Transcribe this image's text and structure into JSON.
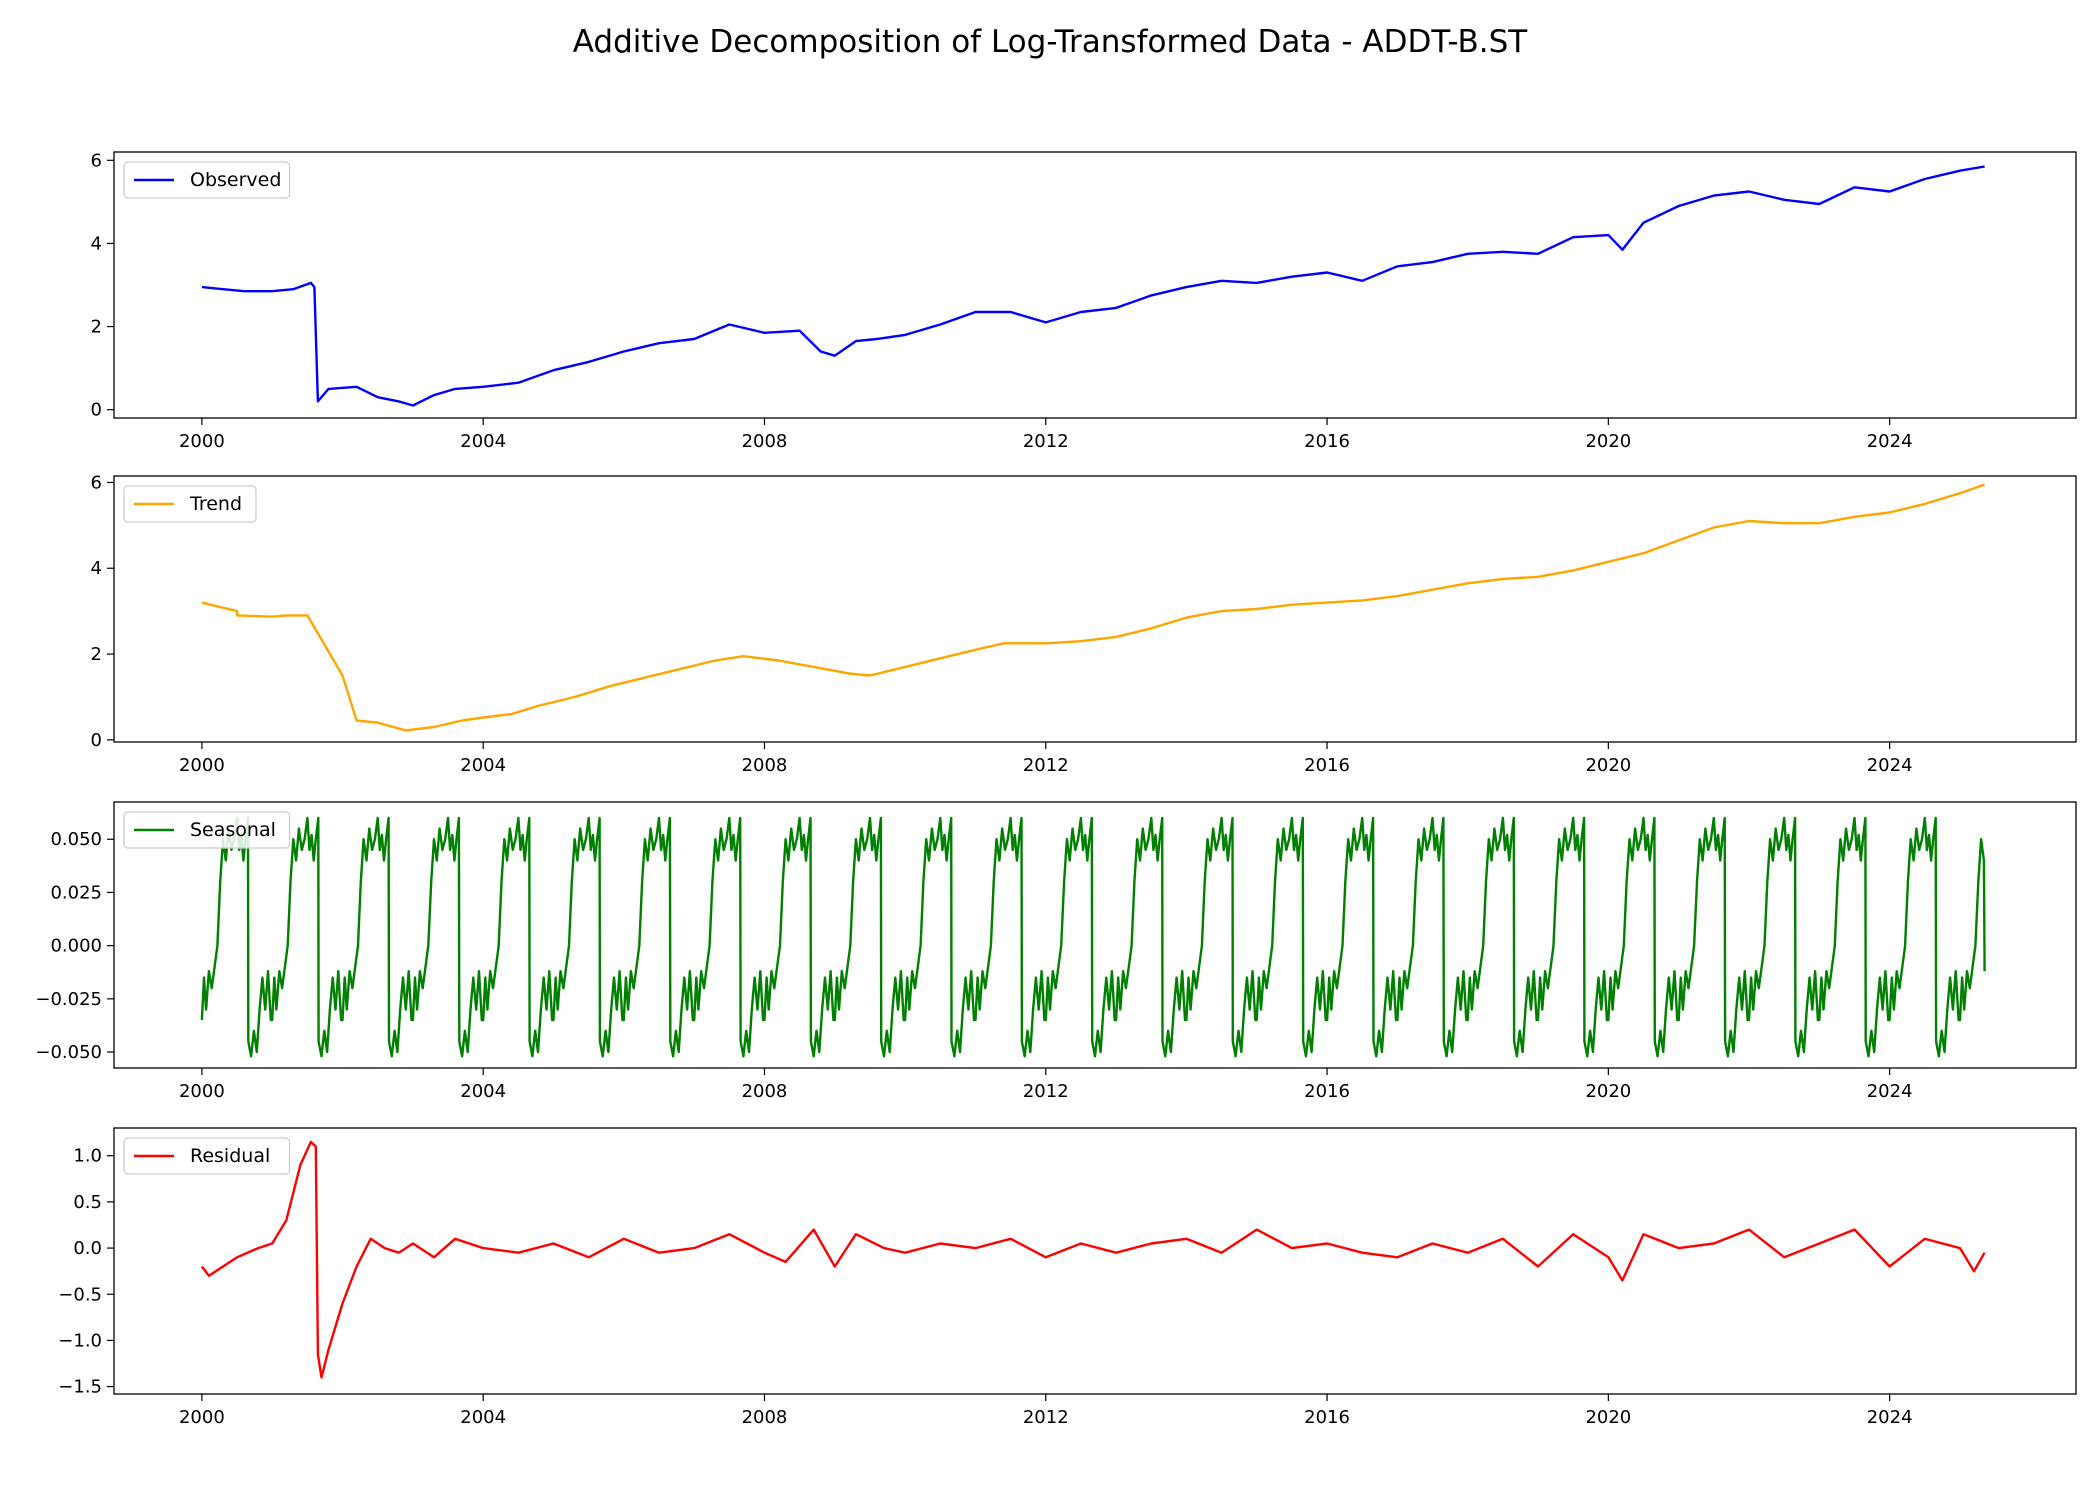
{
  "title": "Additive Decomposition of Log-Transformed Data - ADDT-B.ST",
  "chart_data": [
    {
      "type": "line",
      "legend": "Observed",
      "legend_position": "upper-left",
      "color": "#0000ff",
      "xlim": [
        1998.75,
        2026.65
      ],
      "ylim": [
        -0.2,
        6.2
      ],
      "x_ticks": [
        2000,
        2004,
        2008,
        2012,
        2016,
        2020,
        2024
      ],
      "y_ticks": [
        0,
        2,
        4,
        6
      ],
      "series": [
        {
          "x": [
            2000.0,
            2000.3,
            2000.6,
            2001.0,
            2001.3,
            2001.55,
            2001.6,
            2001.65,
            2001.8,
            2002.2,
            2002.5,
            2002.8,
            2003.0,
            2003.3,
            2003.6,
            2004.0,
            2004.5,
            2005.0,
            2005.5,
            2006.0,
            2006.5,
            2007.0,
            2007.5,
            2008.0,
            2008.5,
            2008.8,
            2009.0,
            2009.3,
            2009.6,
            2010.0,
            2010.5,
            2011.0,
            2011.5,
            2012.0,
            2012.5,
            2013.0,
            2013.5,
            2014.0,
            2014.5,
            2015.0,
            2015.5,
            2016.0,
            2016.5,
            2017.0,
            2017.5,
            2018.0,
            2018.5,
            2019.0,
            2019.5,
            2020.0,
            2020.2,
            2020.5,
            2021.0,
            2021.5,
            2022.0,
            2022.5,
            2023.0,
            2023.5,
            2024.0,
            2024.5,
            2025.0,
            2025.35
          ],
          "y": [
            2.95,
            2.9,
            2.85,
            2.85,
            2.9,
            3.05,
            2.95,
            0.2,
            0.5,
            0.55,
            0.3,
            0.2,
            0.1,
            0.35,
            0.5,
            0.55,
            0.65,
            0.95,
            1.15,
            1.4,
            1.6,
            1.7,
            2.05,
            1.85,
            1.9,
            1.4,
            1.3,
            1.65,
            1.7,
            1.8,
            2.05,
            2.35,
            2.35,
            2.1,
            2.35,
            2.45,
            2.75,
            2.95,
            3.1,
            3.05,
            3.2,
            3.3,
            3.1,
            3.45,
            3.55,
            3.75,
            3.8,
            3.75,
            4.15,
            4.2,
            3.85,
            4.5,
            4.9,
            5.15,
            5.25,
            5.05,
            4.95,
            5.35,
            5.25,
            5.55,
            5.75,
            5.85
          ]
        }
      ]
    },
    {
      "type": "line",
      "legend": "Trend",
      "legend_position": "upper-left",
      "color": "#ffa500",
      "xlim": [
        1998.75,
        2026.65
      ],
      "ylim": [
        -0.05,
        6.15
      ],
      "x_ticks": [
        2000,
        2004,
        2008,
        2012,
        2016,
        2020,
        2024
      ],
      "y_ticks": [
        0,
        2,
        4,
        6
      ],
      "series": [
        {
          "x": [
            2000.0,
            2000.25,
            2000.5,
            2000.5,
            2001.0,
            2001.2,
            2001.5,
            2002.0,
            2002.2,
            2002.5,
            2002.9,
            2003.3,
            2003.7,
            2004.0,
            2004.4,
            2004.8,
            2005.3,
            2005.8,
            2006.3,
            2006.8,
            2007.3,
            2007.7,
            2008.2,
            2008.7,
            2009.2,
            2009.5,
            2010.0,
            2010.5,
            2011.0,
            2011.4,
            2012.0,
            2012.5,
            2013.0,
            2013.5,
            2014.0,
            2014.5,
            2015.0,
            2015.5,
            2016.0,
            2016.5,
            2017.0,
            2017.5,
            2018.0,
            2018.5,
            2019.0,
            2019.5,
            2020.0,
            2020.5,
            2021.0,
            2021.5,
            2022.0,
            2022.5,
            2023.0,
            2023.5,
            2024.0,
            2024.5,
            2025.0,
            2025.35
          ],
          "y": [
            3.2,
            3.1,
            3.0,
            2.9,
            2.87,
            2.9,
            2.9,
            1.5,
            0.45,
            0.4,
            0.22,
            0.3,
            0.45,
            0.52,
            0.6,
            0.8,
            1.0,
            1.25,
            1.45,
            1.65,
            1.85,
            1.95,
            1.85,
            1.7,
            1.55,
            1.5,
            1.7,
            1.9,
            2.1,
            2.25,
            2.25,
            2.3,
            2.4,
            2.6,
            2.85,
            3.0,
            3.05,
            3.15,
            3.2,
            3.25,
            3.35,
            3.5,
            3.65,
            3.75,
            3.8,
            3.95,
            4.15,
            4.35,
            4.65,
            4.95,
            5.1,
            5.05,
            5.05,
            5.2,
            5.3,
            5.5,
            5.75,
            5.95
          ]
        }
      ]
    },
    {
      "type": "line",
      "legend": "Seasonal",
      "legend_position": "upper-left",
      "color": "#008000",
      "xlim": [
        1998.75,
        2026.65
      ],
      "ylim": [
        -0.0575,
        0.0675
      ],
      "x_ticks": [
        2000,
        2004,
        2008,
        2012,
        2016,
        2020,
        2024
      ],
      "y_ticks": [
        -0.05,
        -0.025,
        0.0,
        0.025,
        0.05
      ],
      "period_years": 1,
      "one_period": {
        "phase": [
          0.0,
          0.03,
          0.06,
          0.1,
          0.14,
          0.18,
          0.22,
          0.26,
          0.3,
          0.34,
          0.38,
          0.42,
          0.46,
          0.5,
          0.53,
          0.56,
          0.59,
          0.62,
          0.655,
          0.66,
          0.7,
          0.74,
          0.78,
          0.82,
          0.86,
          0.9,
          0.94,
          0.98
        ],
        "y": [
          -0.035,
          -0.015,
          -0.03,
          -0.012,
          -0.02,
          -0.01,
          0.0,
          0.03,
          0.05,
          0.04,
          0.055,
          0.045,
          0.05,
          0.06,
          0.045,
          0.052,
          0.04,
          0.05,
          0.06,
          -0.045,
          -0.052,
          -0.04,
          -0.05,
          -0.03,
          -0.015,
          -0.03,
          -0.012,
          -0.035
        ]
      },
      "series_end_x": 2025.35,
      "series_end_y": -0.012
    },
    {
      "type": "line",
      "legend": "Residual",
      "legend_position": "upper-left",
      "color": "#ff0000",
      "xlim": [
        1998.75,
        2026.65
      ],
      "ylim": [
        -1.58,
        1.3
      ],
      "x_ticks": [
        2000,
        2004,
        2008,
        2012,
        2016,
        2020,
        2024
      ],
      "y_ticks": [
        -1.5,
        -1.0,
        -0.5,
        0.0,
        0.5,
        1.0
      ],
      "series": [
        {
          "x": [
            2000.0,
            2000.1,
            2000.3,
            2000.5,
            2000.8,
            2001.0,
            2001.2,
            2001.4,
            2001.55,
            2001.62,
            2001.65,
            2001.7,
            2001.8,
            2002.0,
            2002.2,
            2002.4,
            2002.6,
            2002.8,
            2003.0,
            2003.3,
            2003.6,
            2004.0,
            2004.5,
            2005.0,
            2005.5,
            2006.0,
            2006.5,
            2007.0,
            2007.5,
            2008.0,
            2008.3,
            2008.7,
            2009.0,
            2009.3,
            2009.7,
            2010.0,
            2010.5,
            2011.0,
            2011.5,
            2012.0,
            2012.5,
            2013.0,
            2013.5,
            2014.0,
            2014.5,
            2015.0,
            2015.5,
            2016.0,
            2016.5,
            2017.0,
            2017.5,
            2018.0,
            2018.5,
            2019.0,
            2019.5,
            2020.0,
            2020.2,
            2020.5,
            2021.0,
            2021.5,
            2022.0,
            2022.5,
            2023.0,
            2023.5,
            2024.0,
            2024.5,
            2025.0,
            2025.2,
            2025.35
          ],
          "y": [
            -0.2,
            -0.3,
            -0.2,
            -0.1,
            0.0,
            0.05,
            0.3,
            0.9,
            1.15,
            1.1,
            -1.15,
            -1.4,
            -1.1,
            -0.6,
            -0.2,
            0.1,
            0.0,
            -0.05,
            0.05,
            -0.1,
            0.1,
            0.0,
            -0.05,
            0.05,
            -0.1,
            0.1,
            -0.05,
            0.0,
            0.15,
            -0.05,
            -0.15,
            0.2,
            -0.2,
            0.15,
            0.0,
            -0.05,
            0.05,
            0.0,
            0.1,
            -0.1,
            0.05,
            -0.05,
            0.05,
            0.1,
            -0.05,
            0.2,
            0.0,
            0.05,
            -0.05,
            -0.1,
            0.05,
            -0.05,
            0.1,
            -0.2,
            0.15,
            -0.1,
            -0.35,
            0.15,
            0.0,
            0.05,
            0.2,
            -0.1,
            0.05,
            0.2,
            -0.2,
            0.1,
            0.0,
            -0.25,
            -0.05
          ]
        }
      ]
    }
  ]
}
